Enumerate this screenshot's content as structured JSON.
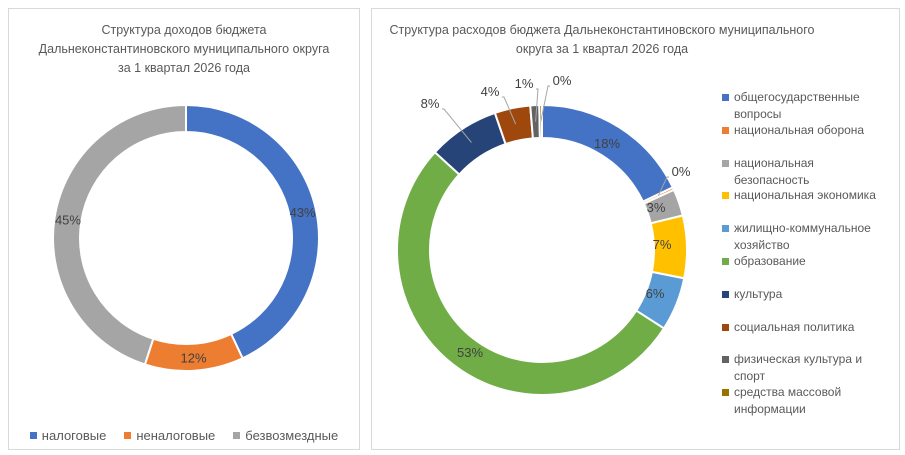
{
  "chart_data": [
    {
      "type": "pie",
      "title": "Структура доходов бюджета Дальнеконстантиновского муниципального округа за 1 квартал 2026 года",
      "title_lines": [
        "Структура доходов бюджета",
        "Дальнеконстантиновского муниципального округа",
        "за 1 квартал 2026 года"
      ],
      "legend_position": "bottom",
      "categories": [
        "налоговые",
        "неналоговые",
        "безвозмездные"
      ],
      "values": [
        43,
        12,
        45
      ],
      "labels": [
        "43%",
        "12%",
        "45%"
      ],
      "colors": [
        "#4472C4",
        "#ED7D31",
        "#A5A5A5"
      ]
    },
    {
      "type": "pie",
      "title": "Структура расходов бюджета Дальнеконстантиновского муниципального округа за 1 квартал 2026 года",
      "title_lines": [
        "Структура расходов бюджета Дальнеконстантиновского муниципального",
        "округа за 1 квартал 2026 года"
      ],
      "legend_position": "right",
      "categories": [
        "общегосударственные вопросы",
        "национальная оборона",
        "национальная безопасность",
        "национальная экономика",
        "жилищно-коммунальное хозяйство",
        "образование",
        "культура",
        "социальная политика",
        "физическая культура и спорт",
        "средства массовой информации"
      ],
      "legend_lines": [
        [
          "общегосударственные",
          "вопросы"
        ],
        [
          "национальная оборона"
        ],
        [
          "национальная безопасность"
        ],
        [
          "национальная экономика"
        ],
        [
          "жилищно-коммунальное",
          "хозяйство"
        ],
        [
          "образование"
        ],
        [
          "культура"
        ],
        [
          "социальная политика"
        ],
        [
          "физическая культура и спорт"
        ],
        [
          "средства массовой",
          "информации"
        ]
      ],
      "values": [
        18,
        0.3,
        3,
        7,
        6,
        53,
        8,
        4,
        1,
        0.3
      ],
      "labels": [
        "18%",
        "0%",
        "3%",
        "7%",
        "6%",
        "53%",
        "8%",
        "4%",
        "1%",
        "0%"
      ],
      "colors": [
        "#4472C4",
        "#ED7D31",
        "#A5A5A5",
        "#FFC000",
        "#5B9BD5",
        "#70AD47",
        "#264478",
        "#9E480E",
        "#636363",
        "#997300"
      ]
    }
  ]
}
